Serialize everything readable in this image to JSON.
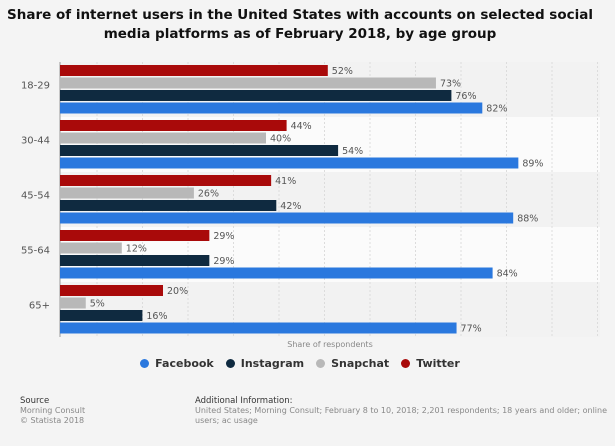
{
  "chart_data": {
    "type": "bar",
    "orientation": "horizontal",
    "title": "Share of internet users in the United States with accounts on selected social media platforms as of February 2018, by age group",
    "xlabel": "Share of respondents",
    "ylabel": "",
    "categories": [
      "18-29",
      "30-44",
      "45-54",
      "55-64",
      "65+"
    ],
    "series": [
      {
        "name": "Twitter",
        "color": "#a90a0a",
        "values": [
          52,
          44,
          41,
          29,
          20
        ]
      },
      {
        "name": "Snapchat",
        "color": "#b8b8b8",
        "values": [
          73,
          40,
          26,
          12,
          5
        ]
      },
      {
        "name": "Instagram",
        "color": "#0f2a40",
        "values": [
          76,
          54,
          42,
          29,
          16
        ]
      },
      {
        "name": "Facebook",
        "color": "#2a78de",
        "values": [
          82,
          89,
          88,
          84,
          77
        ]
      }
    ],
    "legend_order": [
      "Facebook",
      "Instagram",
      "Snapchat",
      "Twitter"
    ],
    "legend_position": "bottom",
    "value_suffix": "%",
    "xlim": [
      0,
      100
    ],
    "grid": true
  },
  "footer": {
    "source_heading": "Source",
    "source_lines": [
      "Morning Consult",
      "© Statista 2018"
    ],
    "additional_heading": "Additional Information:",
    "additional_text": "United States; Morning Consult; February 8 to 10, 2018; 2,201 respondents; 18 years and older; online users; ac usage"
  }
}
